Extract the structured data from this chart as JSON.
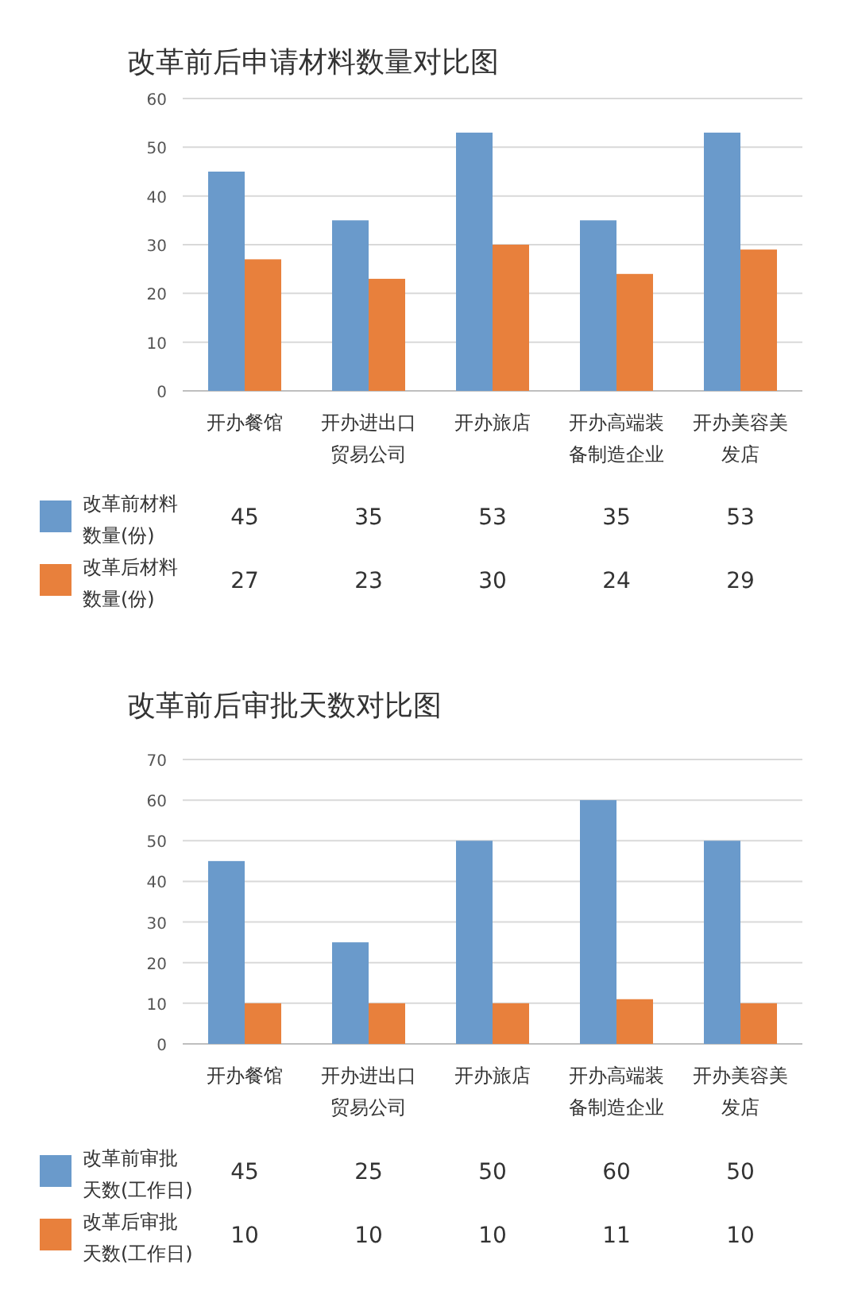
{
  "chart_data": [
    {
      "type": "bar",
      "title": "改革前后申请材料数量对比图",
      "categories": [
        "开办餐馆",
        "开办进出口贸易公司",
        "开办旅店",
        "开办高端装备制造企业",
        "开办美容美发店"
      ],
      "series": [
        {
          "name": "改革前材料数量(份)",
          "color": "#6a9acb",
          "values": [
            45,
            35,
            53,
            35,
            53
          ]
        },
        {
          "name": "改革后材料数量(份)",
          "color": "#e8803c",
          "values": [
            27,
            23,
            30,
            24,
            29
          ]
        }
      ],
      "ylim": [
        0,
        60
      ],
      "yticks": [
        0,
        10,
        20,
        30,
        40,
        50,
        60
      ],
      "grid": "y",
      "data_labels": true,
      "legend": "bottom"
    },
    {
      "type": "bar",
      "title": "改革前后审批天数对比图",
      "categories": [
        "开办餐馆",
        "开办进出口贸易公司",
        "开办旅店",
        "开办高端装备制造企业",
        "开办美容美发店"
      ],
      "series": [
        {
          "name": "改革前审批天数(工作日)",
          "color": "#6a9acb",
          "values": [
            45,
            25,
            50,
            60,
            50
          ]
        },
        {
          "name": "改革后审批天数(工作日)",
          "color": "#e8803c",
          "values": [
            10,
            10,
            10,
            11,
            10
          ]
        }
      ],
      "ylim": [
        0,
        70
      ],
      "yticks": [
        0,
        10,
        20,
        30,
        40,
        50,
        60,
        70
      ],
      "grid": "y",
      "data_labels": true,
      "legend": "bottom"
    }
  ]
}
